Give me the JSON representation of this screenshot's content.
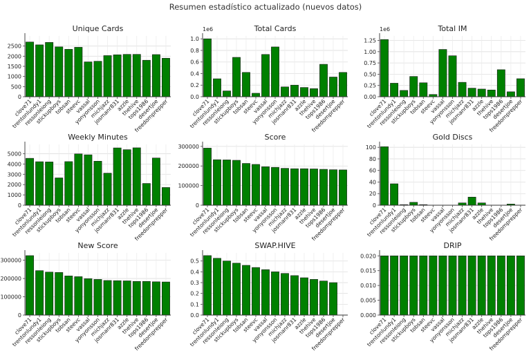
{
  "suptitle": "Resumen estadístico actualizado (nuevos datos)",
  "bar_color": "#008000",
  "bar_edge": "#1a1a1a",
  "categories": [
    "clove71",
    "trentonlundy1",
    "ressonleiong",
    "stickupboys",
    "tobsan",
    "steevc",
    "vassal",
    "yonyonsson",
    "michjazz",
    "josmanr831",
    "azzle",
    "thehive",
    "tops1986",
    "desertjoe",
    "freedomprepper"
  ],
  "chart_data": [
    {
      "type": "bar",
      "title": "Unique Cards",
      "xlabel": "",
      "ylabel": "",
      "ylim": [
        0,
        3000
      ],
      "yticks": [
        0,
        500,
        1000,
        1500,
        2000,
        2500
      ],
      "tick_labels": [
        "0",
        "500",
        "1000",
        "1500",
        "2000",
        "2500"
      ],
      "offset_label": "",
      "grid": true,
      "values": [
        2700,
        2560,
        2680,
        2460,
        2340,
        2440,
        1720,
        1750,
        2030,
        2070,
        2090,
        2090,
        1800,
        2080,
        1900
      ]
    },
    {
      "type": "bar",
      "title": "Total Cards",
      "xlabel": "",
      "ylabel": "",
      "ylim": [
        0,
        1.05
      ],
      "yticks": [
        0,
        0.2,
        0.4,
        0.6,
        0.8,
        1.0
      ],
      "tick_labels": [
        "0.0",
        "0.2",
        "0.4",
        "0.6",
        "0.8",
        "1.0"
      ],
      "offset_label": "1e6",
      "grid": true,
      "values": [
        1.0,
        0.31,
        0.1,
        0.68,
        0.42,
        0.06,
        0.73,
        0.86,
        0.17,
        0.2,
        0.16,
        0.14,
        0.56,
        0.34,
        0.42
      ]
    },
    {
      "type": "bar",
      "title": "Total IM",
      "xlabel": "",
      "ylabel": "",
      "ylim": [
        0,
        1.35
      ],
      "yticks": [
        0,
        0.25,
        0.5,
        0.75,
        1.0,
        1.25
      ],
      "tick_labels": [
        "0.00",
        "0.25",
        "0.50",
        "0.75",
        "1.00",
        "1.25"
      ],
      "offset_label": "1e6",
      "grid": true,
      "values": [
        1.27,
        0.3,
        0.14,
        0.45,
        0.31,
        0.05,
        1.05,
        0.91,
        0.32,
        0.19,
        0.17,
        0.15,
        0.6,
        0.11,
        0.4
      ]
    },
    {
      "type": "bar",
      "title": "Weekly Minutes",
      "xlabel": "",
      "ylabel": "",
      "ylim": [
        0,
        5900
      ],
      "yticks": [
        0,
        1000,
        2000,
        3000,
        4000,
        5000
      ],
      "tick_labels": [
        "0",
        "1000",
        "2000",
        "3000",
        "4000",
        "5000"
      ],
      "offset_label": "",
      "grid": true,
      "values": [
        4550,
        4220,
        4200,
        2650,
        4230,
        4980,
        4890,
        4270,
        3110,
        5560,
        5390,
        5570,
        2110,
        4580,
        1720
      ]
    },
    {
      "type": "bar",
      "title": "Score",
      "xlabel": "",
      "ylabel": "",
      "ylim": [
        0,
        310000
      ],
      "yticks": [
        0,
        100000,
        200000,
        300000
      ],
      "tick_labels": [
        "0",
        "100000",
        "200000",
        "300000"
      ],
      "offset_label": "",
      "grid": true,
      "values": [
        291000,
        232000,
        231000,
        229000,
        213000,
        208000,
        196000,
        193000,
        188000,
        186000,
        186000,
        185000,
        183000,
        181000,
        180000
      ]
    },
    {
      "type": "bar",
      "title": "Gold Discs",
      "xlabel": "",
      "ylabel": "",
      "ylim": [
        0,
        105
      ],
      "yticks": [
        0,
        20,
        40,
        60,
        80,
        100
      ],
      "tick_labels": [
        "0",
        "20",
        "40",
        "60",
        "80",
        "100"
      ],
      "offset_label": "",
      "grid": true,
      "values": [
        101,
        37,
        1,
        5,
        1,
        0,
        0,
        0,
        4,
        14,
        4,
        0,
        0,
        2,
        0
      ]
    },
    {
      "type": "bar",
      "title": "New Score",
      "xlabel": "",
      "ylabel": "",
      "ylim": [
        0,
        340000
      ],
      "yticks": [
        0,
        100000,
        200000,
        300000
      ],
      "tick_labels": [
        "0",
        "100000",
        "200000",
        "300000"
      ],
      "offset_label": "",
      "grid": true,
      "values": [
        325000,
        243000,
        235000,
        233000,
        214000,
        210000,
        199000,
        195000,
        189000,
        188000,
        187000,
        184000,
        184000,
        182000,
        181000
      ]
    },
    {
      "type": "bar",
      "title": "SWAP.HIVE",
      "xlabel": "",
      "ylabel": "",
      "ylim": [
        0,
        0.575
      ],
      "yticks": [
        0,
        0.1,
        0.2,
        0.3,
        0.4,
        0.5
      ],
      "tick_labels": [
        "0.0",
        "0.1",
        "0.2",
        "0.3",
        "0.4",
        "0.5"
      ],
      "offset_label": "",
      "grid": true,
      "values": [
        0.55,
        0.525,
        0.5,
        0.48,
        0.46,
        0.44,
        0.42,
        0.4,
        0.385,
        0.365,
        0.345,
        0.33,
        0.315,
        0.3,
        0.0
      ]
    },
    {
      "type": "bar",
      "title": "DRIP",
      "xlabel": "",
      "ylabel": "",
      "ylim": [
        0,
        0.021
      ],
      "yticks": [
        0,
        0.005,
        0.01,
        0.015,
        0.02
      ],
      "tick_labels": [
        "0.000",
        "0.005",
        "0.010",
        "0.015",
        "0.020"
      ],
      "offset_label": "",
      "grid": true,
      "values": [
        0.02,
        0.02,
        0.02,
        0.02,
        0.02,
        0.02,
        0.02,
        0.02,
        0.02,
        0.02,
        0.02,
        0.02,
        0.02,
        0.02,
        0.02
      ]
    }
  ]
}
